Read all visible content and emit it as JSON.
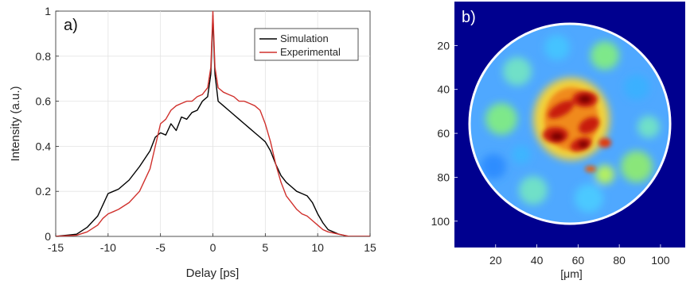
{
  "chart_data": [
    {
      "type": "line",
      "panel_label": "a)",
      "xlabel": "Delay [ps]",
      "ylabel": "Intensity (a.u.)",
      "xlim": [
        -15,
        15
      ],
      "ylim": [
        0,
        1
      ],
      "xticks": [
        -15,
        -10,
        -5,
        0,
        5,
        10,
        15
      ],
      "yticks": [
        0,
        0.2,
        0.4,
        0.6,
        0.8,
        1
      ],
      "grid": true,
      "legend_position": "top-right",
      "series": [
        {
          "name": "Simulation",
          "color": "#000000",
          "x": [
            -15,
            -13,
            -12,
            -11,
            -10.5,
            -10,
            -9.5,
            -9,
            -8,
            -7,
            -6,
            -5.5,
            -5,
            -4.5,
            -4,
            -3.5,
            -3,
            -2.5,
            -2,
            -1.5,
            -1,
            -0.5,
            -0.2,
            0,
            0.2,
            0.5,
            1,
            1.5,
            2,
            2.5,
            3,
            3.5,
            4,
            4.5,
            5,
            5.5,
            6,
            6.5,
            7,
            7.5,
            8,
            8.5,
            9,
            9.5,
            10,
            10.5,
            11,
            12,
            13,
            15
          ],
          "y": [
            0,
            0.01,
            0.04,
            0.09,
            0.14,
            0.19,
            0.2,
            0.21,
            0.25,
            0.31,
            0.38,
            0.44,
            0.46,
            0.45,
            0.5,
            0.47,
            0.53,
            0.52,
            0.55,
            0.56,
            0.6,
            0.62,
            0.72,
            0.98,
            0.72,
            0.6,
            0.58,
            0.56,
            0.54,
            0.52,
            0.5,
            0.48,
            0.46,
            0.44,
            0.42,
            0.38,
            0.32,
            0.27,
            0.24,
            0.22,
            0.2,
            0.19,
            0.18,
            0.15,
            0.1,
            0.06,
            0.03,
            0.01,
            0,
            0
          ]
        },
        {
          "name": "Experimental",
          "color": "#d0312d",
          "x": [
            -15,
            -13,
            -12,
            -11,
            -10.5,
            -10,
            -9.5,
            -9,
            -8,
            -7,
            -6,
            -5.5,
            -5,
            -4.5,
            -4,
            -3.5,
            -3,
            -2.5,
            -2,
            -1.5,
            -1,
            -0.5,
            -0.2,
            0,
            0.2,
            0.5,
            1,
            1.5,
            2,
            2.5,
            3,
            3.5,
            4,
            4.5,
            5,
            5.5,
            6,
            6.5,
            7,
            7.5,
            8,
            8.5,
            9,
            9.5,
            10,
            10.5,
            11,
            12,
            13,
            15
          ],
          "y": [
            0,
            0.005,
            0.02,
            0.05,
            0.08,
            0.1,
            0.11,
            0.12,
            0.15,
            0.2,
            0.3,
            0.4,
            0.5,
            0.52,
            0.56,
            0.58,
            0.59,
            0.6,
            0.6,
            0.62,
            0.63,
            0.66,
            0.75,
            1.0,
            0.75,
            0.66,
            0.64,
            0.63,
            0.62,
            0.6,
            0.6,
            0.59,
            0.58,
            0.56,
            0.5,
            0.42,
            0.32,
            0.24,
            0.18,
            0.15,
            0.12,
            0.1,
            0.09,
            0.07,
            0.05,
            0.03,
            0.02,
            0.01,
            0,
            0
          ]
        }
      ]
    },
    {
      "type": "heatmap",
      "panel_label": "b)",
      "xlabel": "[μm]",
      "ylabel": "",
      "xticks": [
        20,
        40,
        60,
        80,
        100
      ],
      "yticks": [
        20,
        40,
        60,
        80,
        100
      ],
      "xlim": [
        0,
        112
      ],
      "ylim": [
        0,
        112
      ],
      "colormap": "jet",
      "background_color": "#00008f",
      "circle_color": "#ffffff"
    }
  ]
}
